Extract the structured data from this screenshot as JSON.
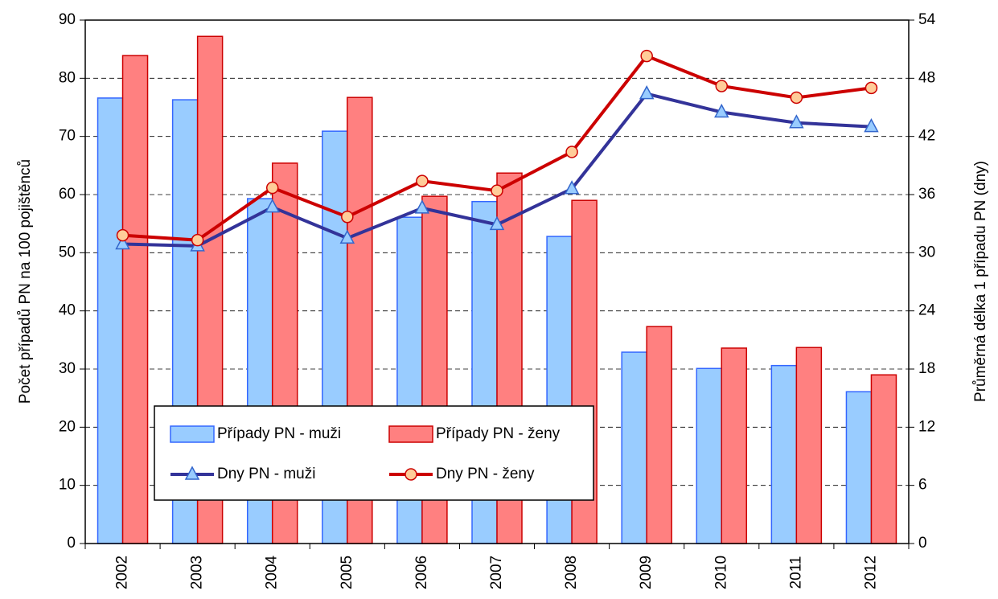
{
  "chart_data": {
    "type": "bar_line",
    "categories": [
      "2002",
      "2003",
      "2004",
      "2005",
      "2006",
      "2007",
      "2008",
      "2009",
      "2010",
      "2011",
      "2012"
    ],
    "series": [
      {
        "name": "Případy PN - muži",
        "type": "bar",
        "color": "#99ccff",
        "edge": "#3366ff",
        "values": [
          76.6,
          76.3,
          59.3,
          70.9,
          56.1,
          58.8,
          52.8,
          32.9,
          30.1,
          30.6,
          26.1
        ]
      },
      {
        "name": "Případy PN - ženy",
        "type": "bar",
        "color": "#ff8080",
        "edge": "#cc0000",
        "values": [
          83.9,
          87.2,
          65.4,
          76.7,
          59.7,
          63.7,
          59.0,
          37.3,
          33.6,
          33.7,
          29.0
        ]
      },
      {
        "name": "Dny PN - muži",
        "type": "line",
        "axis": "y2",
        "color": "#333399",
        "marker": "triangle",
        "marker_color": "#99ccff",
        "values": [
          30.9,
          30.7,
          34.7,
          31.5,
          34.6,
          32.9,
          36.6,
          46.4,
          44.5,
          43.4,
          43.0
        ]
      },
      {
        "name": "Dny PN - ženy",
        "type": "line",
        "axis": "y2",
        "color": "#cc0000",
        "marker": "circle",
        "marker_color": "#ffcc99",
        "values": [
          31.8,
          31.3,
          36.7,
          33.7,
          37.4,
          36.4,
          40.4,
          50.3,
          47.2,
          46.0,
          47.0
        ]
      }
    ],
    "ylabel": "Počet případů PN na 100 pojištěnců",
    "y2label": "Průměrná délka 1 případu PN (dny)",
    "ylim": [
      0,
      90
    ],
    "yticks": [
      0,
      10,
      20,
      30,
      40,
      50,
      60,
      70,
      80,
      90
    ],
    "y2lim": [
      0,
      54
    ],
    "y2ticks": [
      0,
      6,
      12,
      18,
      24,
      30,
      36,
      42,
      48,
      54
    ],
    "grid": true
  }
}
